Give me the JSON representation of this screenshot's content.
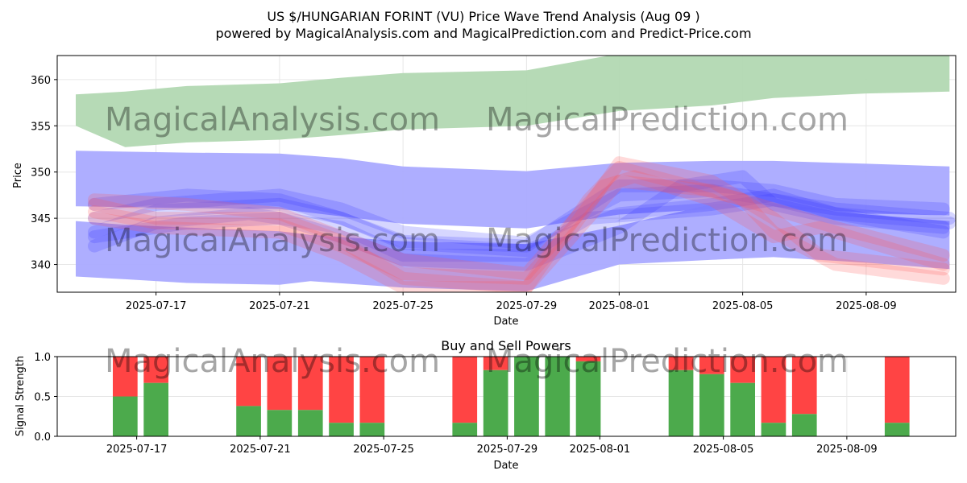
{
  "title_line1": "US $/HUNGARIAN FORINT (VU) Price Wave Trend Analysis (Aug 09 )",
  "title_line2": "powered by MagicalAnalysis.com and MagicalPrediction.com and Predict-Price.com",
  "watermarks": [
    "MagicalAnalysis.com",
    "MagicalPrediction.com"
  ],
  "colors": {
    "green_band": "#b2d8b2",
    "blue_band": "#aaaaff",
    "buy": "#4caa4c",
    "sell": "#ff4444",
    "blue_wave": "#3333ff",
    "red_wave": "#ff5555"
  },
  "chart_data": [
    {
      "type": "area",
      "xlabel": "Date",
      "ylabel": "Price",
      "ylim": [
        337,
        362.6
      ],
      "x_range_days": [
        -1.2,
        27.9
      ],
      "date_origin": "2025-07-15",
      "xtick_labels": [
        "2025-07-17",
        "2025-07-21",
        "2025-07-25",
        "2025-07-29",
        "2025-08-01",
        "2025-08-05",
        "2025-08-09"
      ],
      "xtick_days": [
        2,
        6,
        10,
        14,
        17,
        21,
        25
      ],
      "ytick_labels": [
        "340",
        "345",
        "350",
        "355",
        "360"
      ],
      "ytick_values": [
        340,
        345,
        350,
        355,
        360
      ],
      "bands": [
        {
          "name": "upper-green",
          "x": [
            -0.6,
            1,
            3,
            6,
            8,
            10,
            14,
            17,
            20,
            22,
            25,
            27.7
          ],
          "top": [
            358.4,
            358.7,
            359.3,
            359.6,
            360.2,
            360.7,
            361,
            362.8,
            363,
            363,
            363,
            362.8
          ],
          "bottom": [
            355,
            352.7,
            353.2,
            353.5,
            354,
            354.6,
            355,
            356.6,
            357.2,
            358,
            358.5,
            358.7
          ]
        },
        {
          "name": "mid-blue-upper",
          "x": [
            -0.6,
            1,
            3,
            6,
            8,
            10,
            14,
            17,
            20,
            22,
            25,
            27.7
          ],
          "top": [
            352.3,
            352.2,
            352.1,
            352,
            351.5,
            350.6,
            350.1,
            351,
            351.2,
            351.2,
            350.9,
            350.6
          ],
          "bottom": [
            346.3,
            346.2,
            346.1,
            346,
            345.2,
            344.4,
            343.9,
            345.4,
            346,
            346.2,
            345.5,
            345.3
          ]
        },
        {
          "name": "lower-blue",
          "x": [
            -0.6,
            1,
            3,
            6,
            7,
            10,
            14,
            17,
            20,
            22,
            25,
            27.7
          ],
          "top": [
            344.7,
            344.3,
            344,
            343.6,
            343.2,
            342.5,
            342.2,
            344.2,
            346.5,
            346.6,
            345.4,
            344.7
          ],
          "bottom": [
            338.7,
            338.4,
            338,
            337.8,
            338.2,
            337.5,
            337.1,
            340,
            340.5,
            340.8,
            340.2,
            339.5
          ]
        }
      ],
      "series": [
        {
          "name": "blue-wave-1",
          "color": "blue",
          "x": [
            0,
            2,
            6,
            8,
            10,
            14,
            17,
            20,
            22,
            24,
            27.7
          ],
          "y": [
            343.5,
            345.8,
            346.5,
            345,
            342.3,
            341.5,
            345.5,
            346.5,
            347.5,
            345.5,
            344.5
          ]
        },
        {
          "name": "blue-wave-2",
          "color": "blue",
          "x": [
            0,
            2,
            6,
            8,
            10,
            14,
            17,
            20,
            22,
            24,
            27.7
          ],
          "y": [
            345,
            346.5,
            347.5,
            346,
            343.5,
            342.3,
            347.5,
            348,
            347,
            346,
            345
          ]
        },
        {
          "name": "blue-wave-3",
          "color": "blue",
          "x": [
            0,
            3,
            6,
            8,
            10,
            14,
            17,
            20,
            22,
            24,
            27.5
          ],
          "y": [
            346.5,
            347.5,
            347,
            345,
            342.5,
            342,
            348.5,
            348.5,
            348,
            346.5,
            346
          ]
        },
        {
          "name": "blue-wave-4",
          "color": "blue",
          "x": [
            0,
            3,
            6,
            8,
            10,
            14,
            17,
            19,
            21,
            22,
            24,
            27.5
          ],
          "y": [
            343,
            344.5,
            345,
            343,
            340.5,
            340,
            344,
            348.5,
            349.5,
            346.5,
            345,
            344
          ]
        },
        {
          "name": "blue-wave-5",
          "color": "blue",
          "x": [
            0,
            2,
            5,
            8,
            10,
            14,
            16,
            20,
            22,
            24,
            27.5
          ],
          "y": [
            342,
            344.5,
            345.5,
            344,
            341,
            341,
            345,
            346,
            347,
            345.5,
            343.5
          ]
        },
        {
          "name": "red-wave-1",
          "color": "red",
          "x": [
            0,
            2,
            6,
            8,
            10,
            14,
            15.5,
            17,
            20,
            22,
            23.5,
            27.5
          ],
          "y": [
            345.7,
            344.5,
            344.3,
            342,
            339,
            338.5,
            344,
            351,
            349,
            345,
            341,
            339.5
          ]
        },
        {
          "name": "red-wave-2",
          "color": "red",
          "x": [
            0,
            2,
            6,
            8,
            10,
            14,
            16,
            17,
            21,
            22,
            24,
            27.5
          ],
          "y": [
            346.5,
            345,
            345,
            342.5,
            338.5,
            337.5,
            347,
            350.5,
            347,
            343.5,
            340,
            338.5
          ]
        },
        {
          "name": "red-wave-3",
          "color": "red",
          "x": [
            0,
            3,
            6,
            8,
            10,
            14,
            16.5,
            17.5,
            20,
            22,
            23.5,
            27.5
          ],
          "y": [
            347,
            346.5,
            345.5,
            343,
            340.5,
            339,
            348.5,
            349.5,
            347,
            343,
            344,
            340
          ]
        },
        {
          "name": "red-wave-4",
          "color": "red",
          "x": [
            0,
            2,
            6,
            8,
            10,
            14,
            16,
            17,
            20,
            22,
            24,
            27.5
          ],
          "y": [
            345,
            344,
            343.5,
            341,
            337.5,
            337.5,
            345,
            349,
            348,
            346,
            344,
            341
          ]
        }
      ]
    },
    {
      "type": "bar",
      "title": "Buy and Sell Powers",
      "xlabel": "Date",
      "ylabel": "Signal Strength",
      "ylim": [
        0,
        1
      ],
      "x_range_days": [
        -1.2,
        27.9
      ],
      "xtick_labels": [
        "2025-07-17",
        "2025-07-21",
        "2025-07-25",
        "2025-07-29",
        "2025-08-01",
        "2025-08-05",
        "2025-08-09"
      ],
      "xtick_days": [
        2,
        6,
        10,
        14,
        17,
        21,
        25
      ],
      "ytick_labels": [
        "0.0",
        "0.5",
        "1.0"
      ],
      "ytick_values": [
        0,
        0.5,
        1
      ],
      "bar_days": [
        1,
        2,
        5,
        6,
        7,
        8,
        9,
        12,
        13,
        14,
        15,
        16,
        19,
        20,
        21,
        22,
        23,
        26
      ],
      "buy": [
        0.5,
        0.67,
        0.38,
        0.33,
        0.33,
        0.17,
        0.17,
        0.17,
        0.83,
        1.0,
        1.0,
        0.94,
        0.83,
        0.78,
        0.67,
        0.17,
        0.28,
        0.17
      ]
    }
  ]
}
